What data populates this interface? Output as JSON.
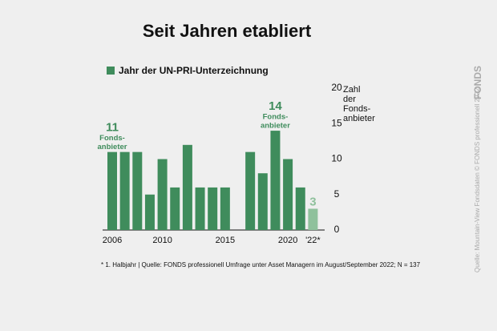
{
  "chart_data": {
    "type": "bar",
    "title": "Seit Jahren etabliert",
    "legend": "Jahr der UN-PRI-Unterzeichnung",
    "color": "#3f8c5c",
    "categories": [
      "2006",
      null,
      null,
      null,
      "2010",
      null,
      null,
      null,
      null,
      "2015",
      null,
      null,
      null,
      null,
      "2020",
      null,
      "'22*"
    ],
    "values": [
      11,
      11,
      11,
      5,
      10,
      6,
      12,
      6,
      6,
      6,
      null,
      11,
      8,
      14,
      10,
      6,
      3
    ],
    "colors": [
      "#3f8c5c",
      "#3f8c5c",
      "#3f8c5c",
      "#3f8c5c",
      "#3f8c5c",
      "#3f8c5c",
      "#3f8c5c",
      "#3f8c5c",
      "#3f8c5c",
      "#3f8c5c",
      "#3f8c5c",
      "#3f8c5c",
      "#3f8c5c",
      "#3f8c5c",
      "#3f8c5c",
      "#3f8c5c",
      "#8fc19c"
    ],
    "value_labels": [
      "11",
      null,
      null,
      null,
      null,
      null,
      null,
      null,
      null,
      null,
      null,
      null,
      null,
      "14",
      null,
      null,
      "3"
    ],
    "value_sublabels": [
      [
        "Fonds-",
        "anbieter"
      ],
      null,
      null,
      null,
      null,
      null,
      null,
      null,
      null,
      null,
      null,
      null,
      null,
      [
        "Fonds-",
        "anbieter"
      ],
      null,
      null,
      null
    ],
    "ylim": [
      0,
      20
    ],
    "yticks": [
      0,
      5,
      10,
      15,
      20
    ],
    "y_label": [
      "Zahl",
      "der",
      "Fonds-",
      "anbieter"
    ],
    "footnote": "* 1. Halbjahr | Quelle: FONDS professionell Umfrage unter Asset Managern im August/September 2022; N = 137",
    "source": "Quelle: Mountain-View Fondsdaten  © FONDS professionell 2022",
    "logo": "FONDS"
  }
}
